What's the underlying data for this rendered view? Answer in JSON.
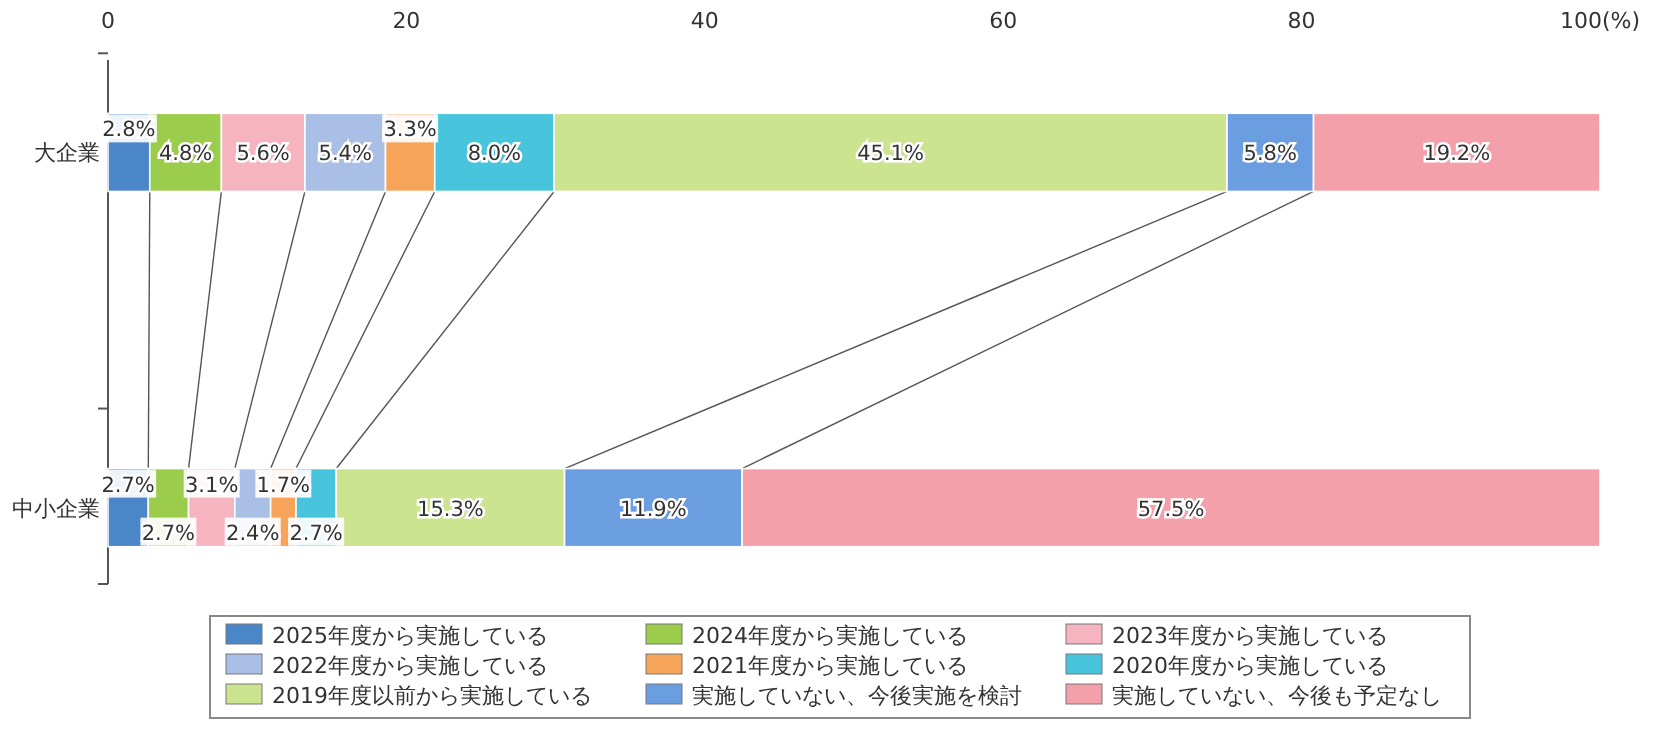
{
  "chart_data": {
    "type": "bar",
    "orientation": "horizontal",
    "stacked": true,
    "categories": [
      "大企業",
      "中小企業"
    ],
    "xlim": [
      0,
      100
    ],
    "xticks": [
      0,
      20,
      40,
      60,
      80,
      {
        "value": 100,
        "label": "100(%)"
      }
    ],
    "grid": false,
    "legend": "bottom",
    "series": [
      {
        "name": "2025年度から実施している",
        "color": "#4a86c8",
        "values": [
          2.8,
          2.7
        ],
        "value_labels": [
          "2.8%",
          "2.7%"
        ]
      },
      {
        "name": "2024年度から実施している",
        "color": "#9ccc4c",
        "values": [
          4.8,
          2.7
        ],
        "value_labels": [
          "4.8%",
          "2.7%"
        ]
      },
      {
        "name": "2023年度から実施している",
        "color": "#f6b4c0",
        "values": [
          5.6,
          3.1
        ],
        "value_labels": [
          "5.6%",
          "3.1%"
        ]
      },
      {
        "name": "2022年度から実施している",
        "color": "#a9bfe6",
        "values": [
          5.4,
          2.4
        ],
        "value_labels": [
          "5.4%",
          "2.4%"
        ]
      },
      {
        "name": "2021年度から実施している",
        "color": "#f5a45a",
        "values": [
          3.3,
          1.7
        ],
        "value_labels": [
          "3.3%",
          "1.7%"
        ]
      },
      {
        "name": "2020年度から実施している",
        "color": "#48c4dc",
        "values": [
          8.0,
          2.7
        ],
        "value_labels": [
          "8.0%",
          "2.7%"
        ]
      },
      {
        "name": "2019年度以前から実施している",
        "color": "#cce490",
        "values": [
          45.1,
          15.3
        ],
        "value_labels": [
          "45.1%",
          "15.3%"
        ]
      },
      {
        "name": "実施していない、今後実施を検討",
        "color": "#6a9ee0",
        "values": [
          5.8,
          11.9
        ],
        "value_labels": [
          "5.8%",
          "11.9%"
        ]
      },
      {
        "name": "実施していない、今後も予定なし",
        "color": "#f4a0ab",
        "values": [
          19.2,
          57.5
        ],
        "value_labels": [
          "19.2%",
          "57.5%"
        ]
      }
    ]
  }
}
